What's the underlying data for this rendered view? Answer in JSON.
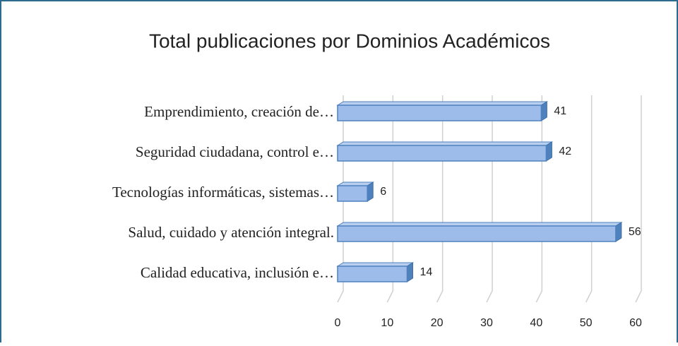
{
  "chart_data": {
    "type": "bar",
    "orientation": "horizontal",
    "title": "Total publicaciones por Dominios Académicos",
    "categories": [
      "Emprendimiento, creación de…",
      "Seguridad ciudadana, control e…",
      "Tecnologías informáticas, sistemas…",
      "Salud, cuidado y atención integral.",
      "Calidad educativa, inclusión e…"
    ],
    "values": [
      41,
      42,
      6,
      56,
      14
    ],
    "color": "#9dbcea",
    "xlim": [
      0,
      60
    ],
    "xticks": [
      0,
      10,
      20,
      30,
      40,
      50,
      60
    ],
    "grid": true
  }
}
